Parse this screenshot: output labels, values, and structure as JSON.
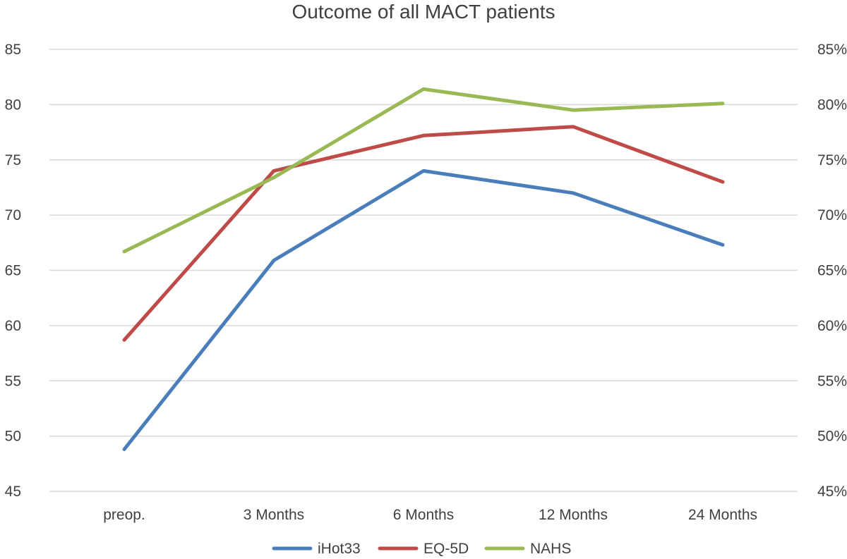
{
  "chart_data": {
    "type": "line",
    "title": "Outcome of all MACT patients",
    "categories": [
      "preop.",
      "3 Months",
      "6 Months",
      "12 Months",
      "24 Months"
    ],
    "y_left": {
      "min": 45,
      "max": 85,
      "step": 5,
      "ticks": [
        "45",
        "50",
        "55",
        "60",
        "65",
        "70",
        "75",
        "80",
        "85"
      ]
    },
    "y_right": {
      "min": 45,
      "max": 85,
      "step": 5,
      "ticks": [
        "45%",
        "50%",
        "55%",
        "60%",
        "65%",
        "70%",
        "75%",
        "80%",
        "85%"
      ]
    },
    "series": [
      {
        "name": "iHot33",
        "color": "#4A7EBB",
        "axis": "left",
        "values": [
          48.8,
          65.9,
          74.0,
          72.0,
          67.3
        ]
      },
      {
        "name": "EQ-5D",
        "color": "#BE4B48",
        "axis": "left",
        "values": [
          58.7,
          74.0,
          77.2,
          78.0,
          73.0
        ]
      },
      {
        "name": "NAHS",
        "color": "#98B954",
        "axis": "right",
        "values": [
          66.7,
          73.4,
          81.4,
          79.5,
          80.1
        ]
      }
    ],
    "grid": true,
    "legend": "bottom"
  }
}
